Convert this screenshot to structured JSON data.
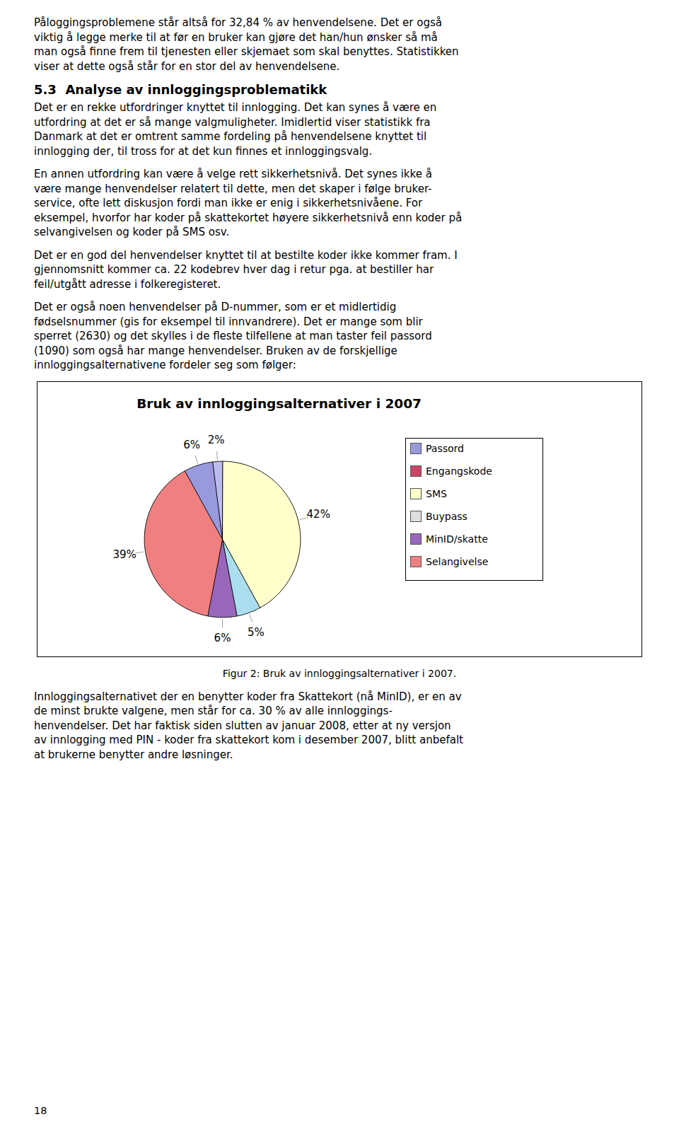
{
  "text1": [
    "Påloggingsproblemene står altså for 32,84 % av henvendelsene. Det er også",
    "viktig å legge merke til at før en bruker kan gjøre det han/hun ønsker så må",
    "man også finne frem til tjenesten eller skjemaet som skal benyttes. Statistikken",
    "viser at dette også står for en stor del av henvendelsene."
  ],
  "heading": "5.3  Analyse av innloggingsproblematikk",
  "text2": [
    [
      "Det er en rekke utfordringer knyttet til innlogging. Det kan synes å være en",
      "utfordring at det er så mange valgmuligheter. Imidlertid viser statistikk fra",
      "Danmark at det er omtrent samme fordeling på henvendelsene knyttet til",
      "innlogging der, til tross for at det kun finnes et innloggingsvalg."
    ],
    [
      "En annen utfordring kan være å velge rett sikkerhetsnivå. Det synes ikke å",
      "være mange henvendelser relatert til dette, men det skaper i følge bruker-",
      "service, ofte lett diskusjon fordi man ikke er enig i sikkerhetsnivåene. For",
      "eksempel, hvorfor har koder på skattekortet høyere sikkerhetsnivå enn koder på",
      "selvangivelsen og koder på SMS osv."
    ],
    [
      "Det er en god del henvendelser knyttet til at bestilte koder ikke kommer fram. I",
      "gjennomsnitt kommer ca. 22 kodebrev hver dag i retur pga. at bestiller har",
      "feil/utgått adresse i folkeregisteret."
    ],
    [
      "Det er også noen henvendelser på D-nummer, som er et midlertidig",
      "fødselsnummer (gis for eksempel til innvandrere). Det er mange som blir",
      "sperret (2630) og det skylles i de fleste tilfellene at man taster feil passord",
      "(1090) som også har mange henvendelser. Bruken av de forskjellige",
      "innloggingsalternativene fordeler seg som følger:"
    ]
  ],
  "chart_data": {
    "type": "pie",
    "title": "Bruk av innloggingsalternativer i 2007",
    "values": [
      42,
      5,
      6,
      39,
      6,
      2
    ],
    "value_labels": [
      "42%",
      "5%",
      "6%",
      "39%",
      "6%",
      "2%"
    ],
    "colors": [
      "#FFFFCC",
      "#AADDEE",
      "#9966BB",
      "#F08080",
      "#9999DD",
      "#BBBBEE"
    ],
    "data_labels": true,
    "legend": "right",
    "legend_entries": [
      {
        "name": "Passord",
        "color": "#9999DD"
      },
      {
        "name": "Engangskode",
        "color": "#CC4466"
      },
      {
        "name": "SMS",
        "color": "#FFFFCC"
      },
      {
        "name": "Buypass",
        "color": "#DDDDDD"
      },
      {
        "name": "MinID/skatte",
        "color": "#9966BB"
      },
      {
        "name": "Selangivelse",
        "color": "#F08080"
      }
    ]
  },
  "caption": "Figur 2: Bruk av innloggingsalternativer i 2007.",
  "text3": [
    "Innloggingsalternativet der en benytter koder fra Skattekort (nå MinID), er en av",
    "de minst brukte valgene, men står for ca. 30 % av alle innloggings-",
    "henvendelser. Det har faktisk siden slutten av januar 2008, etter at ny versjon",
    "av innlogging med PIN - koder fra skattekort kom i desember 2007, blitt anbefalt",
    "at brukerne benytter andre løsninger."
  ],
  "page_number": "18"
}
